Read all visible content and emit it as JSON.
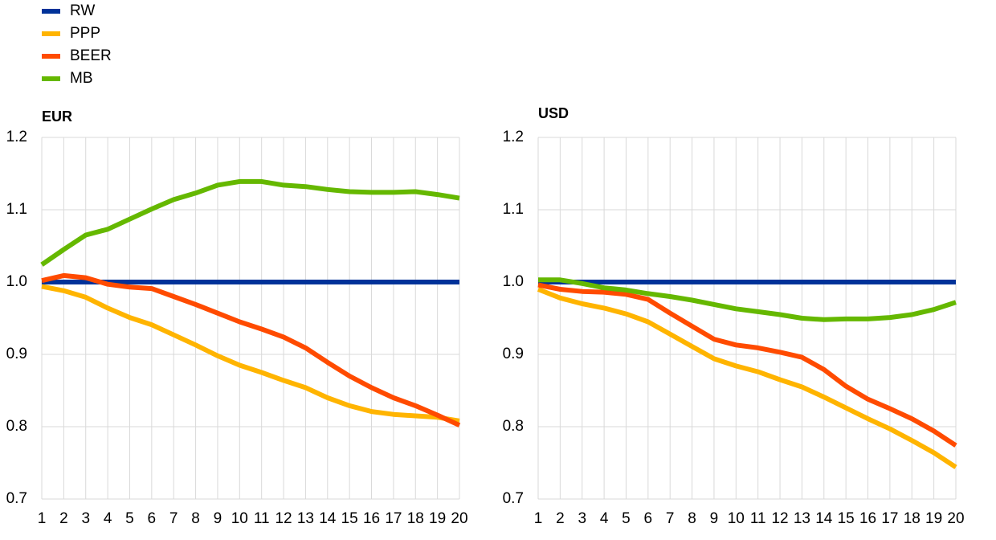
{
  "chart_data": [
    {
      "type": "line",
      "title": "EUR",
      "x": [
        1,
        2,
        3,
        4,
        5,
        6,
        7,
        8,
        9,
        10,
        11,
        12,
        13,
        14,
        15,
        16,
        17,
        18,
        19,
        20
      ],
      "xlim": [
        1,
        20
      ],
      "ylim": [
        0.7,
        1.2
      ],
      "yticks": [
        0.7,
        0.8,
        0.9,
        {
          "value": 1,
          "label": "1.0"
        },
        1.1,
        1.2
      ],
      "grid": true,
      "series": [
        {
          "name": "RW",
          "color": "#003299",
          "values": [
            1,
            1,
            1,
            1,
            1,
            1,
            1,
            1,
            1,
            1,
            1,
            1,
            1,
            1,
            1,
            1,
            1,
            1,
            1,
            1
          ]
        },
        {
          "name": "PPP",
          "color": "#ffb400",
          "values": [
            0.994,
            0.988,
            0.979,
            0.964,
            0.951,
            0.941,
            0.927,
            0.913,
            0.898,
            0.885,
            0.875,
            0.864,
            0.854,
            0.84,
            0.829,
            0.821,
            0.817,
            0.815,
            0.813,
            0.808
          ]
        },
        {
          "name": "BEER",
          "color": "#ff4b00",
          "values": [
            1.002,
            1.009,
            1.006,
            0.997,
            0.993,
            0.991,
            0.98,
            0.969,
            0.957,
            0.945,
            0.935,
            0.924,
            0.909,
            0.889,
            0.87,
            0.854,
            0.84,
            0.829,
            0.816,
            0.802
          ]
        },
        {
          "name": "MB",
          "color": "#65b800",
          "values": [
            1.024,
            1.045,
            1.065,
            1.073,
            1.087,
            1.101,
            1.114,
            1.123,
            1.134,
            1.139,
            1.139,
            1.134,
            1.132,
            1.128,
            1.125,
            1.124,
            1.124,
            1.125,
            1.121,
            1.116
          ]
        }
      ]
    },
    {
      "type": "line",
      "title": "USD",
      "x": [
        1,
        2,
        3,
        4,
        5,
        6,
        7,
        8,
        9,
        10,
        11,
        12,
        13,
        14,
        15,
        16,
        17,
        18,
        19,
        20
      ],
      "xlim": [
        1,
        20
      ],
      "ylim": [
        0.7,
        1.2
      ],
      "yticks": [
        0.7,
        0.8,
        0.9,
        {
          "value": 1,
          "label": "1.0"
        },
        1.1,
        1.2
      ],
      "grid": true,
      "series": [
        {
          "values": [
            1,
            1,
            1,
            1,
            1,
            1,
            1,
            1,
            1,
            1,
            1,
            1,
            1,
            1,
            1,
            1,
            1,
            1,
            1,
            1
          ]
        },
        {
          "values": [
            0.99,
            0.978,
            0.97,
            0.964,
            0.956,
            0.945,
            0.928,
            0.911,
            0.894,
            0.884,
            0.876,
            0.865,
            0.855,
            0.841,
            0.826,
            0.811,
            0.797,
            0.781,
            0.764,
            0.744
          ]
        },
        {
          "values": [
            0.996,
            0.99,
            0.987,
            0.986,
            0.983,
            0.976,
            0.957,
            0.939,
            0.921,
            0.913,
            0.909,
            0.903,
            0.896,
            0.879,
            0.856,
            0.838,
            0.825,
            0.811,
            0.794,
            0.774
          ]
        },
        {
          "values": [
            1.003,
            1.003,
            0.998,
            0.992,
            0.989,
            0.984,
            0.98,
            0.975,
            0.969,
            0.963,
            0.959,
            0.955,
            0.95,
            0.948,
            0.949,
            0.949,
            0.951,
            0.955,
            0.962,
            0.972
          ]
        }
      ]
    }
  ]
}
